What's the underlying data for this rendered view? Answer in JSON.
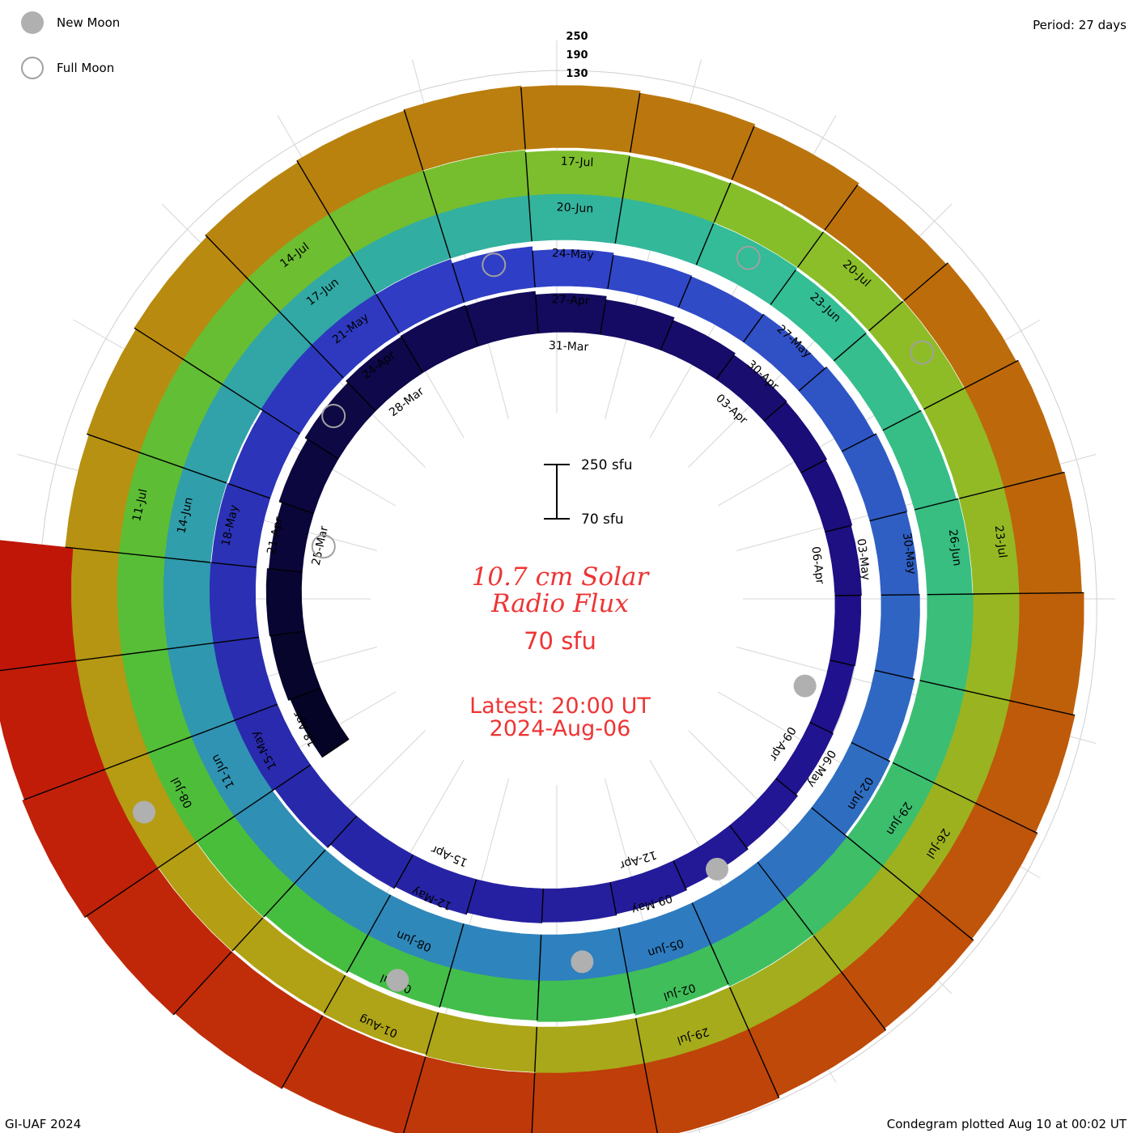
{
  "header": {
    "period": "Period: 27 days",
    "credit": "GI-UAF 2024",
    "plotted": "Condegram plotted Aug 10 at 00:02 UT"
  },
  "legend": {
    "new_moon": "New Moon",
    "full_moon": "Full Moon",
    "new_moon_color": "#b0b0b0",
    "full_moon_color": "#a0a0a0"
  },
  "center": {
    "title_line1": "10.7 cm Solar",
    "title_line2": "Radio Flux",
    "reference": "70 sfu",
    "latest": "Latest: 20:00 UT",
    "latest_date": "2024-Aug-06",
    "scale_top": "250 sfu",
    "scale_bottom": "70 sfu",
    "text_color": "#ee3434"
  },
  "chart_data": {
    "type": "condegram",
    "period_days": 27,
    "baseline_sfu": 70,
    "scale_max_sfu": 250,
    "top_scale_labels": [
      "250",
      "190",
      "130"
    ],
    "grid_sfu": [
      130,
      190,
      250
    ],
    "start_date": "2024-03-22",
    "end_date": "2024-08-06",
    "date_labels": [
      "25-Mar",
      "28-Mar",
      "31-Mar",
      "03-Apr",
      "06-Apr",
      "09-Apr",
      "12-Apr",
      "15-Apr",
      "18-Apr",
      "21-Apr",
      "24-Apr",
      "27-Apr",
      "30-Apr",
      "03-May",
      "06-May",
      "09-May",
      "12-May",
      "15-May",
      "18-May",
      "21-May",
      "24-May",
      "27-May",
      "30-May",
      "02-Jun",
      "05-Jun",
      "08-Jun",
      "11-Jun",
      "14-Jun",
      "17-Jun",
      "20-Jun",
      "23-Jun",
      "26-Jun",
      "29-Jun",
      "02-Jul",
      "05-Jul",
      "08-Jul",
      "11-Jul",
      "14-Jul",
      "17-Jul",
      "20-Jul",
      "23-Jul",
      "26-Jul",
      "29-Jul",
      "01-Aug"
    ],
    "daily_flux_sfu": [
      {
        "date": "2024-03-22",
        "sfu": 145
      },
      {
        "date": "2024-03-23",
        "sfu": 150
      },
      {
        "date": "2024-03-24",
        "sfu": 152
      },
      {
        "date": "2024-03-25",
        "sfu": 148
      },
      {
        "date": "2024-03-26",
        "sfu": 155
      },
      {
        "date": "2024-03-27",
        "sfu": 162
      },
      {
        "date": "2024-03-28",
        "sfu": 168
      },
      {
        "date": "2024-03-29",
        "sfu": 170
      },
      {
        "date": "2024-03-30",
        "sfu": 168
      },
      {
        "date": "2024-03-31",
        "sfu": 160
      },
      {
        "date": "2024-04-01",
        "sfu": 152
      },
      {
        "date": "2024-04-02",
        "sfu": 145
      },
      {
        "date": "2024-04-03",
        "sfu": 140
      },
      {
        "date": "2024-04-04",
        "sfu": 138
      },
      {
        "date": "2024-04-05",
        "sfu": 135
      },
      {
        "date": "2024-04-06",
        "sfu": 132
      },
      {
        "date": "2024-04-07",
        "sfu": 130
      },
      {
        "date": "2024-04-08",
        "sfu": 128
      },
      {
        "date": "2024-04-09",
        "sfu": 130
      },
      {
        "date": "2024-04-10",
        "sfu": 135
      },
      {
        "date": "2024-04-11",
        "sfu": 140
      },
      {
        "date": "2024-04-12",
        "sfu": 145
      },
      {
        "date": "2024-04-13",
        "sfu": 148
      },
      {
        "date": "2024-04-14",
        "sfu": 150
      },
      {
        "date": "2024-04-15",
        "sfu": 155
      },
      {
        "date": "2024-04-16",
        "sfu": 160
      },
      {
        "date": "2024-04-17",
        "sfu": 170
      },
      {
        "date": "2024-04-18",
        "sfu": 180
      },
      {
        "date": "2024-04-19",
        "sfu": 185
      },
      {
        "date": "2024-04-20",
        "sfu": 180
      },
      {
        "date": "2024-04-21",
        "sfu": 175
      },
      {
        "date": "2024-04-22",
        "sfu": 172
      },
      {
        "date": "2024-04-23",
        "sfu": 178
      },
      {
        "date": "2024-04-24",
        "sfu": 185
      },
      {
        "date": "2024-04-25",
        "sfu": 175
      },
      {
        "date": "2024-04-26",
        "sfu": 165
      },
      {
        "date": "2024-04-27",
        "sfu": 155
      },
      {
        "date": "2024-04-28",
        "sfu": 150
      },
      {
        "date": "2024-04-29",
        "sfu": 148
      },
      {
        "date": "2024-04-30",
        "sfu": 150
      },
      {
        "date": "2024-05-01",
        "sfu": 155
      },
      {
        "date": "2024-05-02",
        "sfu": 160
      },
      {
        "date": "2024-05-03",
        "sfu": 158
      },
      {
        "date": "2024-05-04",
        "sfu": 160
      },
      {
        "date": "2024-05-05",
        "sfu": 165
      },
      {
        "date": "2024-05-06",
        "sfu": 170
      },
      {
        "date": "2024-05-07",
        "sfu": 180
      },
      {
        "date": "2024-05-08",
        "sfu": 190
      },
      {
        "date": "2024-05-09",
        "sfu": 200
      },
      {
        "date": "2024-05-10",
        "sfu": 210
      },
      {
        "date": "2024-05-11",
        "sfu": 215
      },
      {
        "date": "2024-05-12",
        "sfu": 212
      },
      {
        "date": "2024-05-13",
        "sfu": 205
      },
      {
        "date": "2024-05-14",
        "sfu": 200
      },
      {
        "date": "2024-05-15",
        "sfu": 195
      },
      {
        "date": "2024-05-16",
        "sfu": 190
      },
      {
        "date": "2024-05-17",
        "sfu": 185
      },
      {
        "date": "2024-05-18",
        "sfu": 180
      },
      {
        "date": "2024-05-19",
        "sfu": 182
      },
      {
        "date": "2024-05-20",
        "sfu": 190
      },
      {
        "date": "2024-05-21",
        "sfu": 195
      },
      {
        "date": "2024-05-22",
        "sfu": 192
      },
      {
        "date": "2024-05-23",
        "sfu": 188
      },
      {
        "date": "2024-05-24",
        "sfu": 185
      },
      {
        "date": "2024-05-25",
        "sfu": 180
      },
      {
        "date": "2024-05-26",
        "sfu": 175
      },
      {
        "date": "2024-05-27",
        "sfu": 170
      },
      {
        "date": "2024-05-28",
        "sfu": 168
      },
      {
        "date": "2024-05-29",
        "sfu": 170
      },
      {
        "date": "2024-05-30",
        "sfu": 175
      },
      {
        "date": "2024-05-31",
        "sfu": 180
      },
      {
        "date": "2024-06-01",
        "sfu": 182
      },
      {
        "date": "2024-06-02",
        "sfu": 180
      },
      {
        "date": "2024-06-03",
        "sfu": 178
      },
      {
        "date": "2024-06-04",
        "sfu": 175
      },
      {
        "date": "2024-06-05",
        "sfu": 170
      },
      {
        "date": "2024-06-06",
        "sfu": 165
      },
      {
        "date": "2024-06-07",
        "sfu": 162
      },
      {
        "date": "2024-06-08",
        "sfu": 165
      },
      {
        "date": "2024-06-09",
        "sfu": 170
      },
      {
        "date": "2024-06-10",
        "sfu": 175
      },
      {
        "date": "2024-06-11",
        "sfu": 180
      },
      {
        "date": "2024-06-12",
        "sfu": 182
      },
      {
        "date": "2024-06-13",
        "sfu": 180
      },
      {
        "date": "2024-06-14",
        "sfu": 178
      },
      {
        "date": "2024-06-15",
        "sfu": 180
      },
      {
        "date": "2024-06-16",
        "sfu": 182
      },
      {
        "date": "2024-06-17",
        "sfu": 185
      },
      {
        "date": "2024-06-18",
        "sfu": 180
      },
      {
        "date": "2024-06-19",
        "sfu": 175
      },
      {
        "date": "2024-06-20",
        "sfu": 170
      },
      {
        "date": "2024-06-21",
        "sfu": 168
      },
      {
        "date": "2024-06-22",
        "sfu": 170
      },
      {
        "date": "2024-06-23",
        "sfu": 172
      },
      {
        "date": "2024-06-24",
        "sfu": 175
      },
      {
        "date": "2024-06-25",
        "sfu": 178
      },
      {
        "date": "2024-06-26",
        "sfu": 180
      },
      {
        "date": "2024-06-27",
        "sfu": 182
      },
      {
        "date": "2024-06-28",
        "sfu": 185
      },
      {
        "date": "2024-06-29",
        "sfu": 190
      },
      {
        "date": "2024-06-30",
        "sfu": 188
      },
      {
        "date": "2024-07-01",
        "sfu": 185
      },
      {
        "date": "2024-07-02",
        "sfu": 182
      },
      {
        "date": "2024-07-03",
        "sfu": 178
      },
      {
        "date": "2024-07-04",
        "sfu": 175
      },
      {
        "date": "2024-07-05",
        "sfu": 172
      },
      {
        "date": "2024-07-06",
        "sfu": 170
      },
      {
        "date": "2024-07-07",
        "sfu": 175
      },
      {
        "date": "2024-07-08",
        "sfu": 180
      },
      {
        "date": "2024-07-09",
        "sfu": 185
      },
      {
        "date": "2024-07-10",
        "sfu": 190
      },
      {
        "date": "2024-07-11",
        "sfu": 195
      },
      {
        "date": "2024-07-12",
        "sfu": 200
      },
      {
        "date": "2024-07-13",
        "sfu": 205
      },
      {
        "date": "2024-07-14",
        "sfu": 210
      },
      {
        "date": "2024-07-15",
        "sfu": 215
      },
      {
        "date": "2024-07-16",
        "sfu": 218
      },
      {
        "date": "2024-07-17",
        "sfu": 215
      },
      {
        "date": "2024-07-18",
        "sfu": 210
      },
      {
        "date": "2024-07-19",
        "sfu": 205
      },
      {
        "date": "2024-07-20",
        "sfu": 200
      },
      {
        "date": "2024-07-21",
        "sfu": 205
      },
      {
        "date": "2024-07-22",
        "sfu": 210
      },
      {
        "date": "2024-07-23",
        "sfu": 215
      },
      {
        "date": "2024-07-24",
        "sfu": 220
      },
      {
        "date": "2024-07-25",
        "sfu": 225
      },
      {
        "date": "2024-07-26",
        "sfu": 230
      },
      {
        "date": "2024-07-27",
        "sfu": 235
      },
      {
        "date": "2024-07-28",
        "sfu": 240
      },
      {
        "date": "2024-07-29",
        "sfu": 245
      },
      {
        "date": "2024-07-30",
        "sfu": 250
      },
      {
        "date": "2024-07-31",
        "sfu": 255
      },
      {
        "date": "2024-08-01",
        "sfu": 260
      },
      {
        "date": "2024-08-02",
        "sfu": 265
      },
      {
        "date": "2024-08-03",
        "sfu": 270
      },
      {
        "date": "2024-08-04",
        "sfu": 275
      },
      {
        "date": "2024-08-05",
        "sfu": 270
      },
      {
        "date": "2024-08-06",
        "sfu": 265
      }
    ],
    "new_moons": [
      "2024-04-08",
      "2024-05-08",
      "2024-06-06",
      "2024-07-05",
      "2024-08-04"
    ],
    "full_moons": [
      "2024-03-25",
      "2024-04-23",
      "2024-05-23",
      "2024-06-22",
      "2024-07-21"
    ]
  }
}
